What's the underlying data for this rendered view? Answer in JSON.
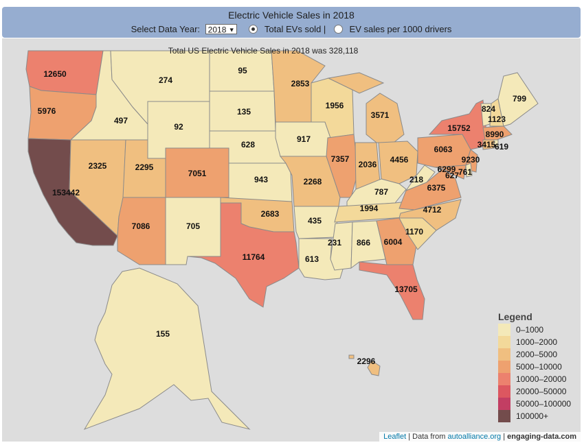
{
  "header": {
    "title": "Electric Vehicle Sales in 2018",
    "year_label": "Select Data Year:",
    "year_value": "2018",
    "option_total": "Total EVs sold |",
    "option_per1000": "EV sales per 1000 drivers",
    "selected_option": "total"
  },
  "note": "Total US Electric Vehicle Sales in 2018 was 328,118",
  "legend": {
    "title": "Legend",
    "items": [
      {
        "label": "0–1000",
        "color": "#f4e9b9"
      },
      {
        "label": "1000–2000",
        "color": "#f3d99a"
      },
      {
        "label": "2000–5000",
        "color": "#f0bf80"
      },
      {
        "label": "5000–10000",
        "color": "#eea16f"
      },
      {
        "label": "10000–20000",
        "color": "#ec816e"
      },
      {
        "label": "20000–50000",
        "color": "#dc5760"
      },
      {
        "label": "50000–100000",
        "color": "#c23e63"
      },
      {
        "label": "100000+",
        "color": "#734c4c"
      }
    ]
  },
  "states": {
    "CA": "153442",
    "WA": "12650",
    "OR": "5976",
    "ID": "497",
    "MT": "274",
    "WY": "92",
    "NV": "2325",
    "UT": "2295",
    "CO": "7051",
    "AZ": "7086",
    "NM": "705",
    "ND": "95",
    "SD": "135",
    "NE": "628",
    "KS": "943",
    "OK": "2683",
    "TX": "11764",
    "MN": "2853",
    "IA": "917",
    "MO": "2268",
    "AR": "435",
    "LA": "613",
    "WI": "1956",
    "IL": "7357",
    "MI": "3571",
    "IN": "2036",
    "OH": "4456",
    "KY": "787",
    "TN": "1994",
    "MS": "231",
    "AL": "866",
    "GA": "6004",
    "FL": "13705",
    "SC": "1170",
    "NC": "4712",
    "VA": "6375",
    "WV": "218",
    "PA": "6063",
    "NY": "15752",
    "ME": "799",
    "VT": "824",
    "NH": "1123",
    "MA": "8990",
    "CT": "3415",
    "RI": "619",
    "NJ": "9230",
    "DE": "761",
    "MD": "6299",
    "DC": "627",
    "AK": "155",
    "HI": "2296"
  },
  "attribution": {
    "leaflet": "Leaflet",
    "data_from": "| Data from",
    "source": "autoalliance.org",
    "sep": "|",
    "site": "engaging-data.com"
  }
}
